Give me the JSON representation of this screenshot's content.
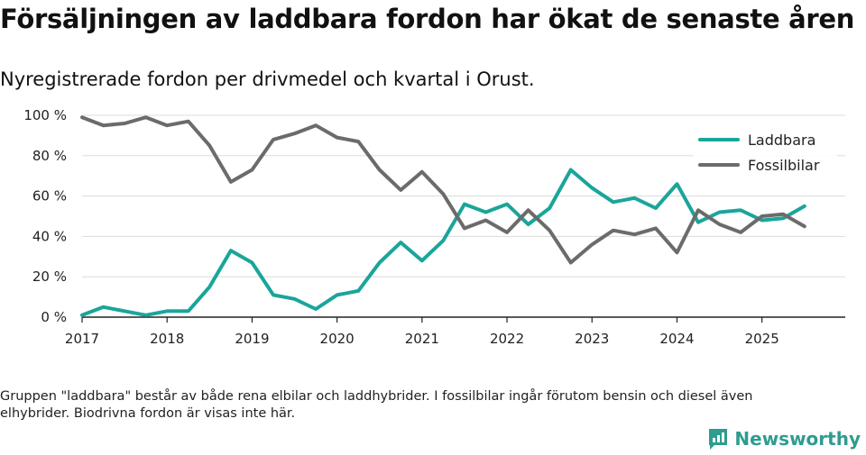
{
  "title": "Försäljningen av laddbara fordon har ökat de senaste åren",
  "subtitle": "Nyregistrerade fordon per drivmedel och kvartal i Orust.",
  "note": "Gruppen \"laddbara\" består av både rena elbilar och laddhybrider. I fossilbilar ingår förutom bensin och diesel även elhybrider. Biodrivna fordon är visas inte här.",
  "brand": {
    "name": "Newsworthy",
    "icon": "bar-chart-icon"
  },
  "colors": {
    "laddbara": "#1aa59a",
    "fossil": "#6b6b6b",
    "brand": "#2f9c8e"
  },
  "chart_data": {
    "type": "line",
    "title": "Försäljningen av laddbara fordon har ökat de senaste åren",
    "xlabel": "",
    "ylabel": "",
    "ylim": [
      0,
      100
    ],
    "yticks": [
      0,
      20,
      40,
      60,
      80,
      100
    ],
    "ytick_labels": [
      "0 %",
      "20 %",
      "40 %",
      "60 %",
      "80 %",
      "100 %"
    ],
    "xlim": [
      2017,
      2025.98
    ],
    "xticks": [
      2017,
      2018,
      2019,
      2020,
      2021,
      2022,
      2023,
      2024,
      2025
    ],
    "xtick_labels": [
      "2017",
      "2018",
      "2019",
      "2020",
      "2021",
      "2022",
      "2023",
      "2024",
      "2025"
    ],
    "legend_position": "top-right",
    "x": [
      2017.0,
      2017.25,
      2017.5,
      2017.75,
      2018.0,
      2018.25,
      2018.5,
      2018.75,
      2019.0,
      2019.25,
      2019.5,
      2019.75,
      2020.0,
      2020.25,
      2020.5,
      2020.75,
      2021.0,
      2021.25,
      2021.5,
      2021.75,
      2022.0,
      2022.25,
      2022.5,
      2022.75,
      2023.0,
      2023.25,
      2023.5,
      2023.75,
      2024.0,
      2024.25,
      2024.5,
      2024.75,
      2025.0,
      2025.25,
      2025.5
    ],
    "series": [
      {
        "name": "Laddbara",
        "color": "#1aa59a",
        "values": [
          1,
          5,
          3,
          1,
          3,
          3,
          15,
          33,
          27,
          11,
          9,
          4,
          11,
          13,
          27,
          37,
          28,
          38,
          56,
          52,
          56,
          46,
          54,
          73,
          64,
          57,
          59,
          54,
          66,
          47,
          52,
          53,
          48,
          49,
          55
        ]
      },
      {
        "name": "Fossilbilar",
        "color": "#6b6b6b",
        "values": [
          99,
          95,
          96,
          99,
          95,
          97,
          85,
          67,
          73,
          88,
          91,
          95,
          89,
          87,
          73,
          63,
          72,
          61,
          44,
          48,
          42,
          53,
          43,
          27,
          36,
          43,
          41,
          44,
          32,
          53,
          46,
          42,
          50,
          51,
          45
        ]
      }
    ]
  }
}
